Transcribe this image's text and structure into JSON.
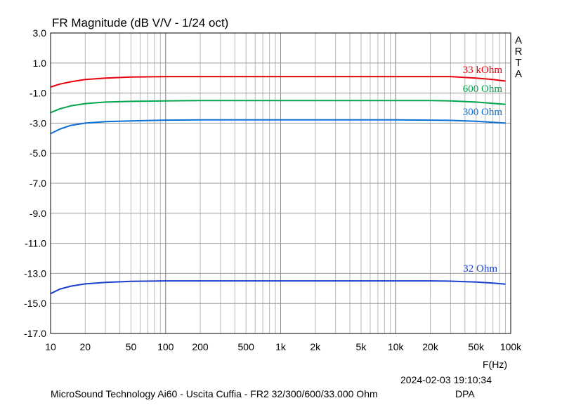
{
  "chart_data": {
    "type": "line",
    "title": "FR Magnitude (dB V/V - 1/24 oct)",
    "xlabel": "F(Hz)",
    "ylabel": "",
    "x_scale": "log",
    "xlim": [
      10,
      100000
    ],
    "ylim": [
      -17.0,
      3.0
    ],
    "grid": true,
    "x_ticks": [
      {
        "value": 10,
        "label": "10"
      },
      {
        "value": 20,
        "label": "20"
      },
      {
        "value": 50,
        "label": "50"
      },
      {
        "value": 100,
        "label": "100"
      },
      {
        "value": 200,
        "label": "200"
      },
      {
        "value": 500,
        "label": "500"
      },
      {
        "value": 1000,
        "label": "1k"
      },
      {
        "value": 2000,
        "label": "2k"
      },
      {
        "value": 5000,
        "label": "5k"
      },
      {
        "value": 10000,
        "label": "10k"
      },
      {
        "value": 20000,
        "label": "20k"
      },
      {
        "value": 50000,
        "label": "50k"
      },
      {
        "value": 100000,
        "label": "100k"
      }
    ],
    "y_ticks": [
      {
        "value": 3.0,
        "label": "3.0"
      },
      {
        "value": 1.0,
        "label": "1.0"
      },
      {
        "value": -1.0,
        "label": "-1.0"
      },
      {
        "value": -3.0,
        "label": "-3.0"
      },
      {
        "value": -5.0,
        "label": "-5.0"
      },
      {
        "value": -7.0,
        "label": "-7.0"
      },
      {
        "value": -9.0,
        "label": "-9.0"
      },
      {
        "value": -11.0,
        "label": "-11.0"
      },
      {
        "value": -13.0,
        "label": "-13.0"
      },
      {
        "value": -15.0,
        "label": "-15.0"
      },
      {
        "value": -17.0,
        "label": "-17.0"
      }
    ],
    "series": [
      {
        "name": "33 kOhm",
        "color": "#e8000b",
        "x": [
          10,
          12,
          15,
          20,
          30,
          50,
          100,
          200,
          500,
          1000,
          2000,
          5000,
          10000,
          20000,
          30000,
          50000,
          70000,
          90000
        ],
        "y": [
          -0.6,
          -0.4,
          -0.25,
          -0.1,
          0.0,
          0.07,
          0.1,
          0.1,
          0.1,
          0.1,
          0.1,
          0.1,
          0.1,
          0.1,
          0.1,
          0.0,
          -0.1,
          -0.2
        ]
      },
      {
        "name": "600 Ohm",
        "color": "#00a64c",
        "x": [
          10,
          12,
          15,
          20,
          30,
          50,
          100,
          200,
          500,
          1000,
          2000,
          5000,
          10000,
          20000,
          30000,
          50000,
          70000,
          90000
        ],
        "y": [
          -2.3,
          -2.05,
          -1.85,
          -1.7,
          -1.6,
          -1.55,
          -1.52,
          -1.5,
          -1.5,
          -1.5,
          -1.5,
          -1.5,
          -1.5,
          -1.5,
          -1.52,
          -1.6,
          -1.68,
          -1.75
        ]
      },
      {
        "name": "300 Ohm",
        "color": "#0a6ed8",
        "x": [
          10,
          12,
          15,
          20,
          30,
          50,
          100,
          200,
          500,
          1000,
          2000,
          5000,
          10000,
          20000,
          30000,
          50000,
          70000,
          90000
        ],
        "y": [
          -3.7,
          -3.4,
          -3.15,
          -3.0,
          -2.9,
          -2.85,
          -2.8,
          -2.78,
          -2.78,
          -2.78,
          -2.78,
          -2.78,
          -2.78,
          -2.8,
          -2.82,
          -2.88,
          -2.95,
          -3.0
        ]
      },
      {
        "name": "32 Ohm",
        "color": "#1a3fcc",
        "x": [
          10,
          12,
          15,
          20,
          30,
          50,
          100,
          200,
          500,
          1000,
          2000,
          5000,
          10000,
          20000,
          30000,
          50000,
          70000,
          90000
        ],
        "y": [
          -14.35,
          -14.05,
          -13.85,
          -13.7,
          -13.6,
          -13.53,
          -13.5,
          -13.5,
          -13.5,
          -13.5,
          -13.5,
          -13.5,
          -13.5,
          -13.5,
          -13.52,
          -13.58,
          -13.65,
          -13.72
        ]
      }
    ],
    "side_label": "ARTA",
    "timestamp": "2024-02-03  19:10:34",
    "footer": "MicroSound Technology Ai60 - Uscita Cuffia - FR2 32/300/600/33.000 Ohm",
    "footer_right": "DPA"
  }
}
